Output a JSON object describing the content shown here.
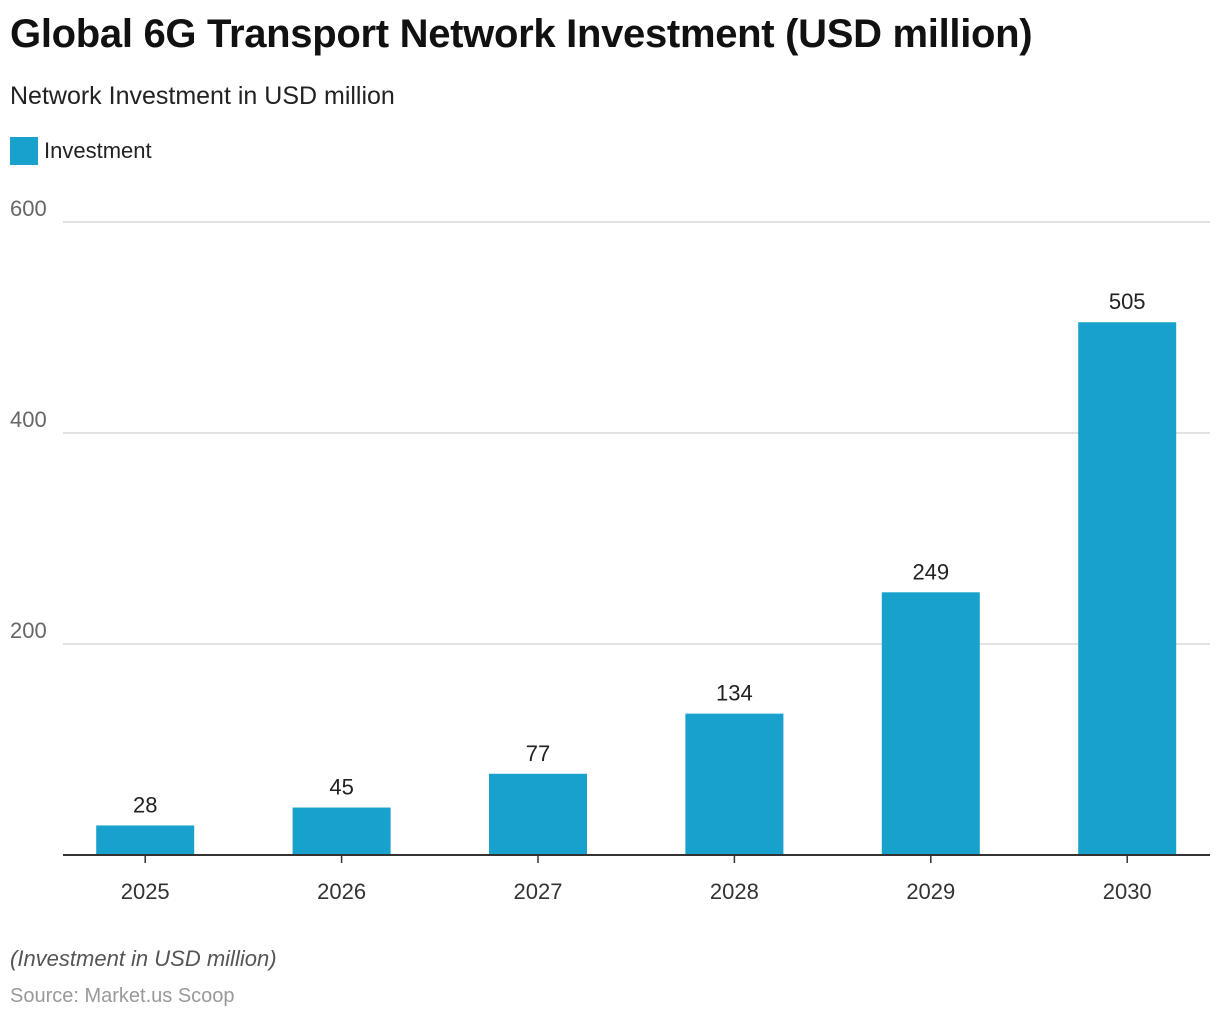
{
  "title": "Global 6G Transport Network Investment (USD million)",
  "subtitle": "Network Investment in USD million",
  "note": "(Investment in USD million)",
  "source": "Source: Market.us Scoop",
  "colors": {
    "bar": "#18a1cd"
  },
  "chart_data": {
    "type": "bar",
    "categories": [
      "2025",
      "2026",
      "2027",
      "2028",
      "2029",
      "2030"
    ],
    "series": [
      {
        "name": "Investment",
        "values": [
          28,
          45,
          77,
          134,
          249,
          505
        ]
      }
    ],
    "yticks": [
      200,
      400,
      600
    ],
    "ylim": [
      0,
      600
    ],
    "grid": true,
    "legend": "top-left"
  }
}
